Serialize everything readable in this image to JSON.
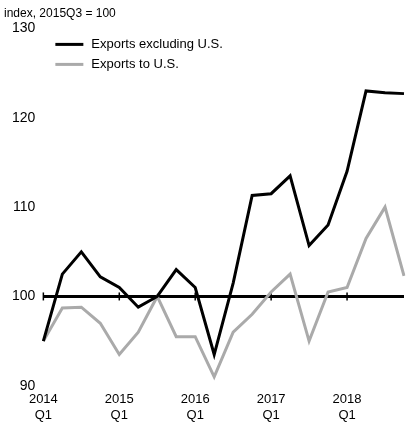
{
  "chart_data": {
    "type": "line",
    "title": "index, 2015Q3 = 100",
    "categories": [
      "2014 Q1",
      null,
      null,
      null,
      "2015 Q1",
      null,
      null,
      null,
      "2016 Q1",
      null,
      null,
      null,
      "2017 Q1",
      null,
      null,
      null,
      "2018 Q1",
      null,
      null,
      null
    ],
    "series": [
      {
        "name": "Exports excluding U.S.",
        "color": "#000000",
        "values": [
          95,
          102.5,
          105,
          102.2,
          101,
          98.8,
          100,
          103,
          101,
          93.5,
          101.5,
          111.3,
          111.5,
          113.5,
          105.7,
          108,
          114,
          123,
          122.8,
          122.7
        ]
      },
      {
        "name": "Exports to U.S.",
        "color": "#aaaaaa",
        "values": [
          95,
          98.7,
          98.8,
          97,
          93.5,
          96,
          100,
          95.5,
          95.5,
          91,
          96,
          98,
          100.5,
          102.5,
          95,
          100.5,
          101,
          106.5,
          110,
          102.3
        ]
      }
    ],
    "ylim": [
      90,
      130
    ],
    "yticks": [
      90,
      100,
      110,
      120,
      130
    ],
    "grid": false,
    "legend": "upper left"
  }
}
